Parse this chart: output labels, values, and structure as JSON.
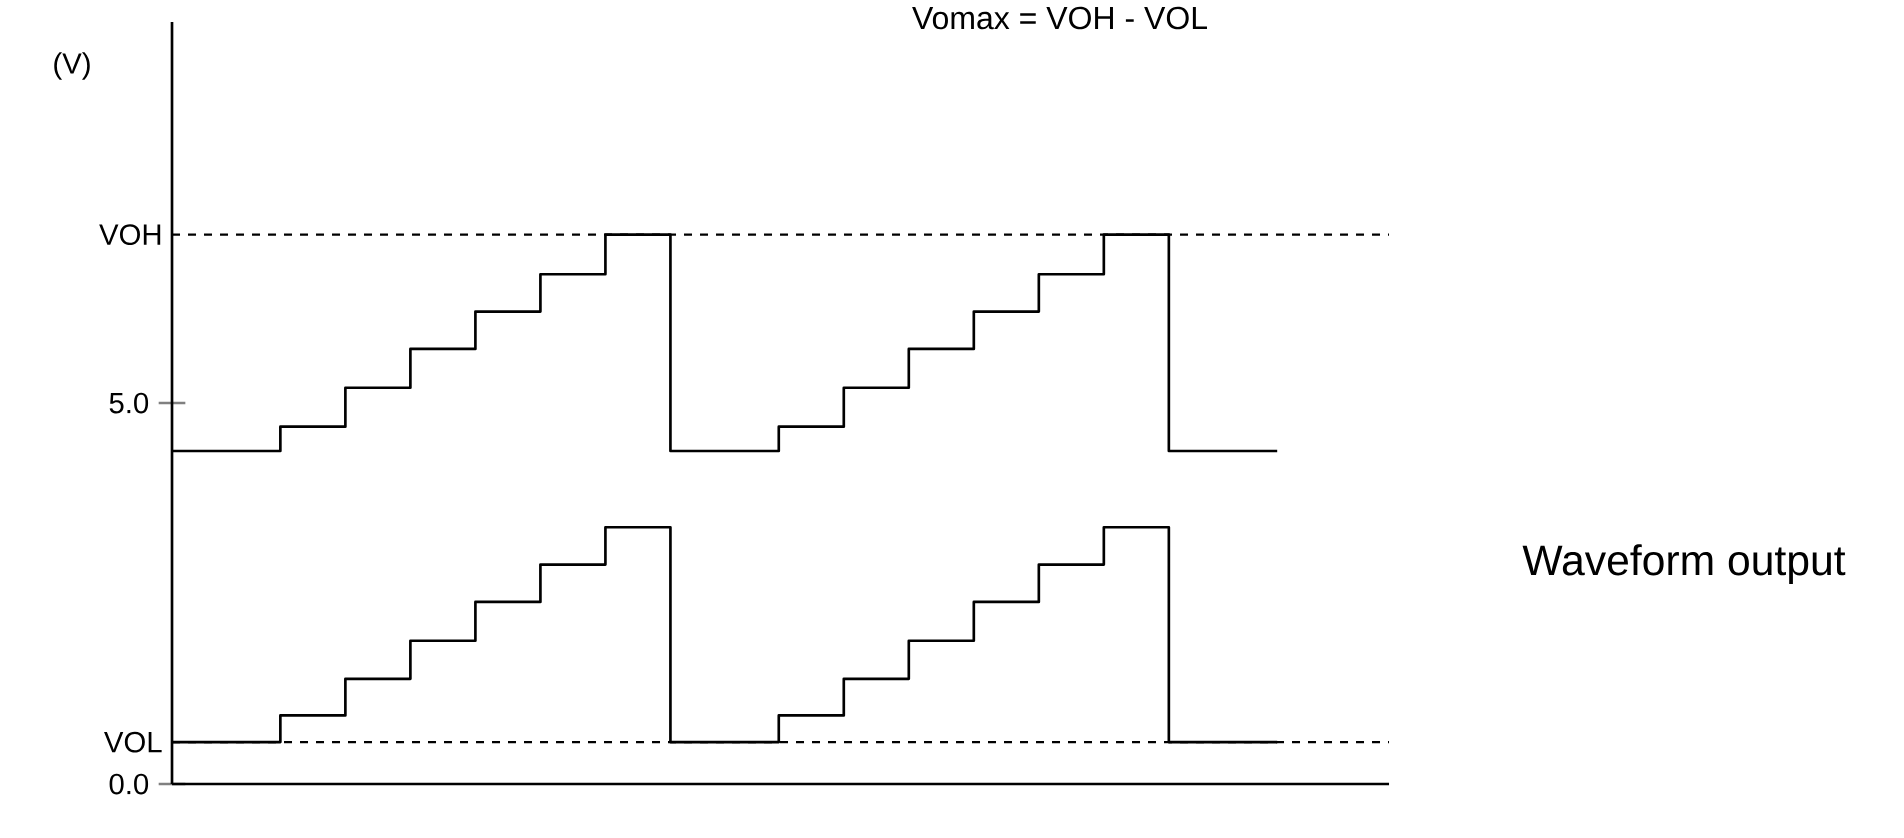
{
  "chart_data": {
    "type": "step",
    "title": "Vomax    =   VOH -  VOL",
    "ylabel": "(V)",
    "annotations": [
      "Waveform output"
    ],
    "categories": [
      null,
      null,
      null,
      null,
      null,
      null,
      null,
      null,
      null,
      null,
      null,
      null,
      null,
      null,
      null,
      null,
      null,
      null,
      null,
      null,
      null,
      null,
      null,
      null,
      null,
      null,
      null,
      null,
      null,
      null,
      null,
      null,
      null,
      null,
      null,
      null,
      null,
      null,
      null,
      null,
      null,
      null,
      null,
      null,
      null,
      null,
      null,
      null,
      null,
      null,
      null,
      null
    ],
    "ylim": [
      0,
      10
    ],
    "yticks": [
      {
        "value": 0,
        "label": "0.0"
      },
      {
        "value": 5,
        "label": "5.0"
      }
    ],
    "tick_labels": "y",
    "ref_lines": [
      {
        "axis": "y",
        "value": 7.21,
        "label": "VOH",
        "line_style": "dashed",
        "color": "#000000"
      },
      {
        "axis": "y",
        "value": 0.55,
        "label": "VOL",
        "line_style": "dashed",
        "color": "#000000"
      }
    ],
    "series": [
      {
        "color": "#000000",
        "values": [
          4.37,
          4.37,
          4.37,
          4.37,
          4.37,
          4.69,
          4.69,
          4.69,
          5.2,
          5.2,
          5.2,
          5.71,
          5.71,
          5.71,
          6.2,
          6.2,
          6.2,
          6.69,
          6.69,
          6.69,
          7.21,
          7.21,
          7.21,
          4.37,
          4.37,
          4.37,
          4.37,
          4.37,
          4.69,
          4.69,
          4.69,
          5.2,
          5.2,
          5.2,
          5.71,
          5.71,
          5.71,
          6.2,
          6.2,
          6.2,
          6.69,
          6.69,
          6.69,
          7.21,
          7.21,
          7.21,
          4.37,
          4.37,
          4.37,
          4.37,
          4.37,
          4.37
        ]
      },
      {
        "color": "#000000",
        "values": [
          0.55,
          0.55,
          0.55,
          0.55,
          0.55,
          0.9,
          0.9,
          0.9,
          1.38,
          1.38,
          1.38,
          1.88,
          1.88,
          1.88,
          2.39,
          2.39,
          2.39,
          2.88,
          2.88,
          2.88,
          3.37,
          3.37,
          3.37,
          0.55,
          0.55,
          0.55,
          0.55,
          0.55,
          0.9,
          0.9,
          0.9,
          1.38,
          1.38,
          1.38,
          1.88,
          1.88,
          1.88,
          2.39,
          2.39,
          2.39,
          2.88,
          2.88,
          2.88,
          3.37,
          3.37,
          3.37,
          0.55,
          0.55,
          0.55,
          0.55,
          0.55,
          0.55
        ]
      }
    ]
  }
}
